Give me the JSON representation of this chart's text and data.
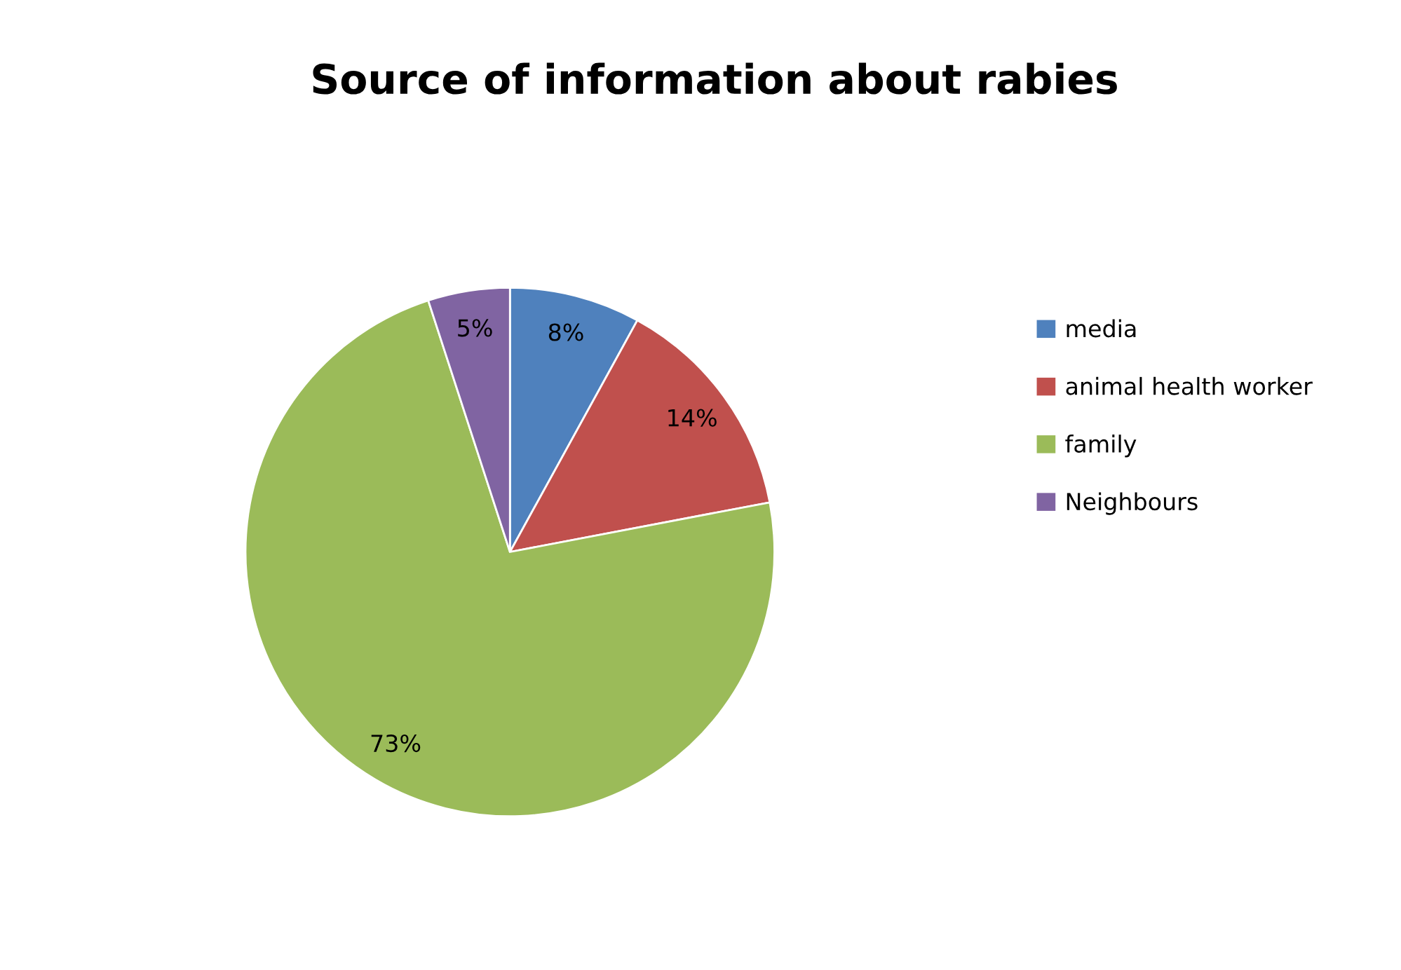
{
  "chart_data": {
    "type": "pie",
    "title": "Source of information about rabies",
    "categories": [
      "media",
      "animal health worker",
      "family",
      "Neighbours"
    ],
    "values": [
      8,
      14,
      73,
      5
    ],
    "colors": [
      "#4f81bd",
      "#c0504d",
      "#9bbb59",
      "#8064a2"
    ],
    "value_labels": [
      "8%",
      "14%",
      "73%",
      "5%"
    ],
    "legend": "right"
  }
}
